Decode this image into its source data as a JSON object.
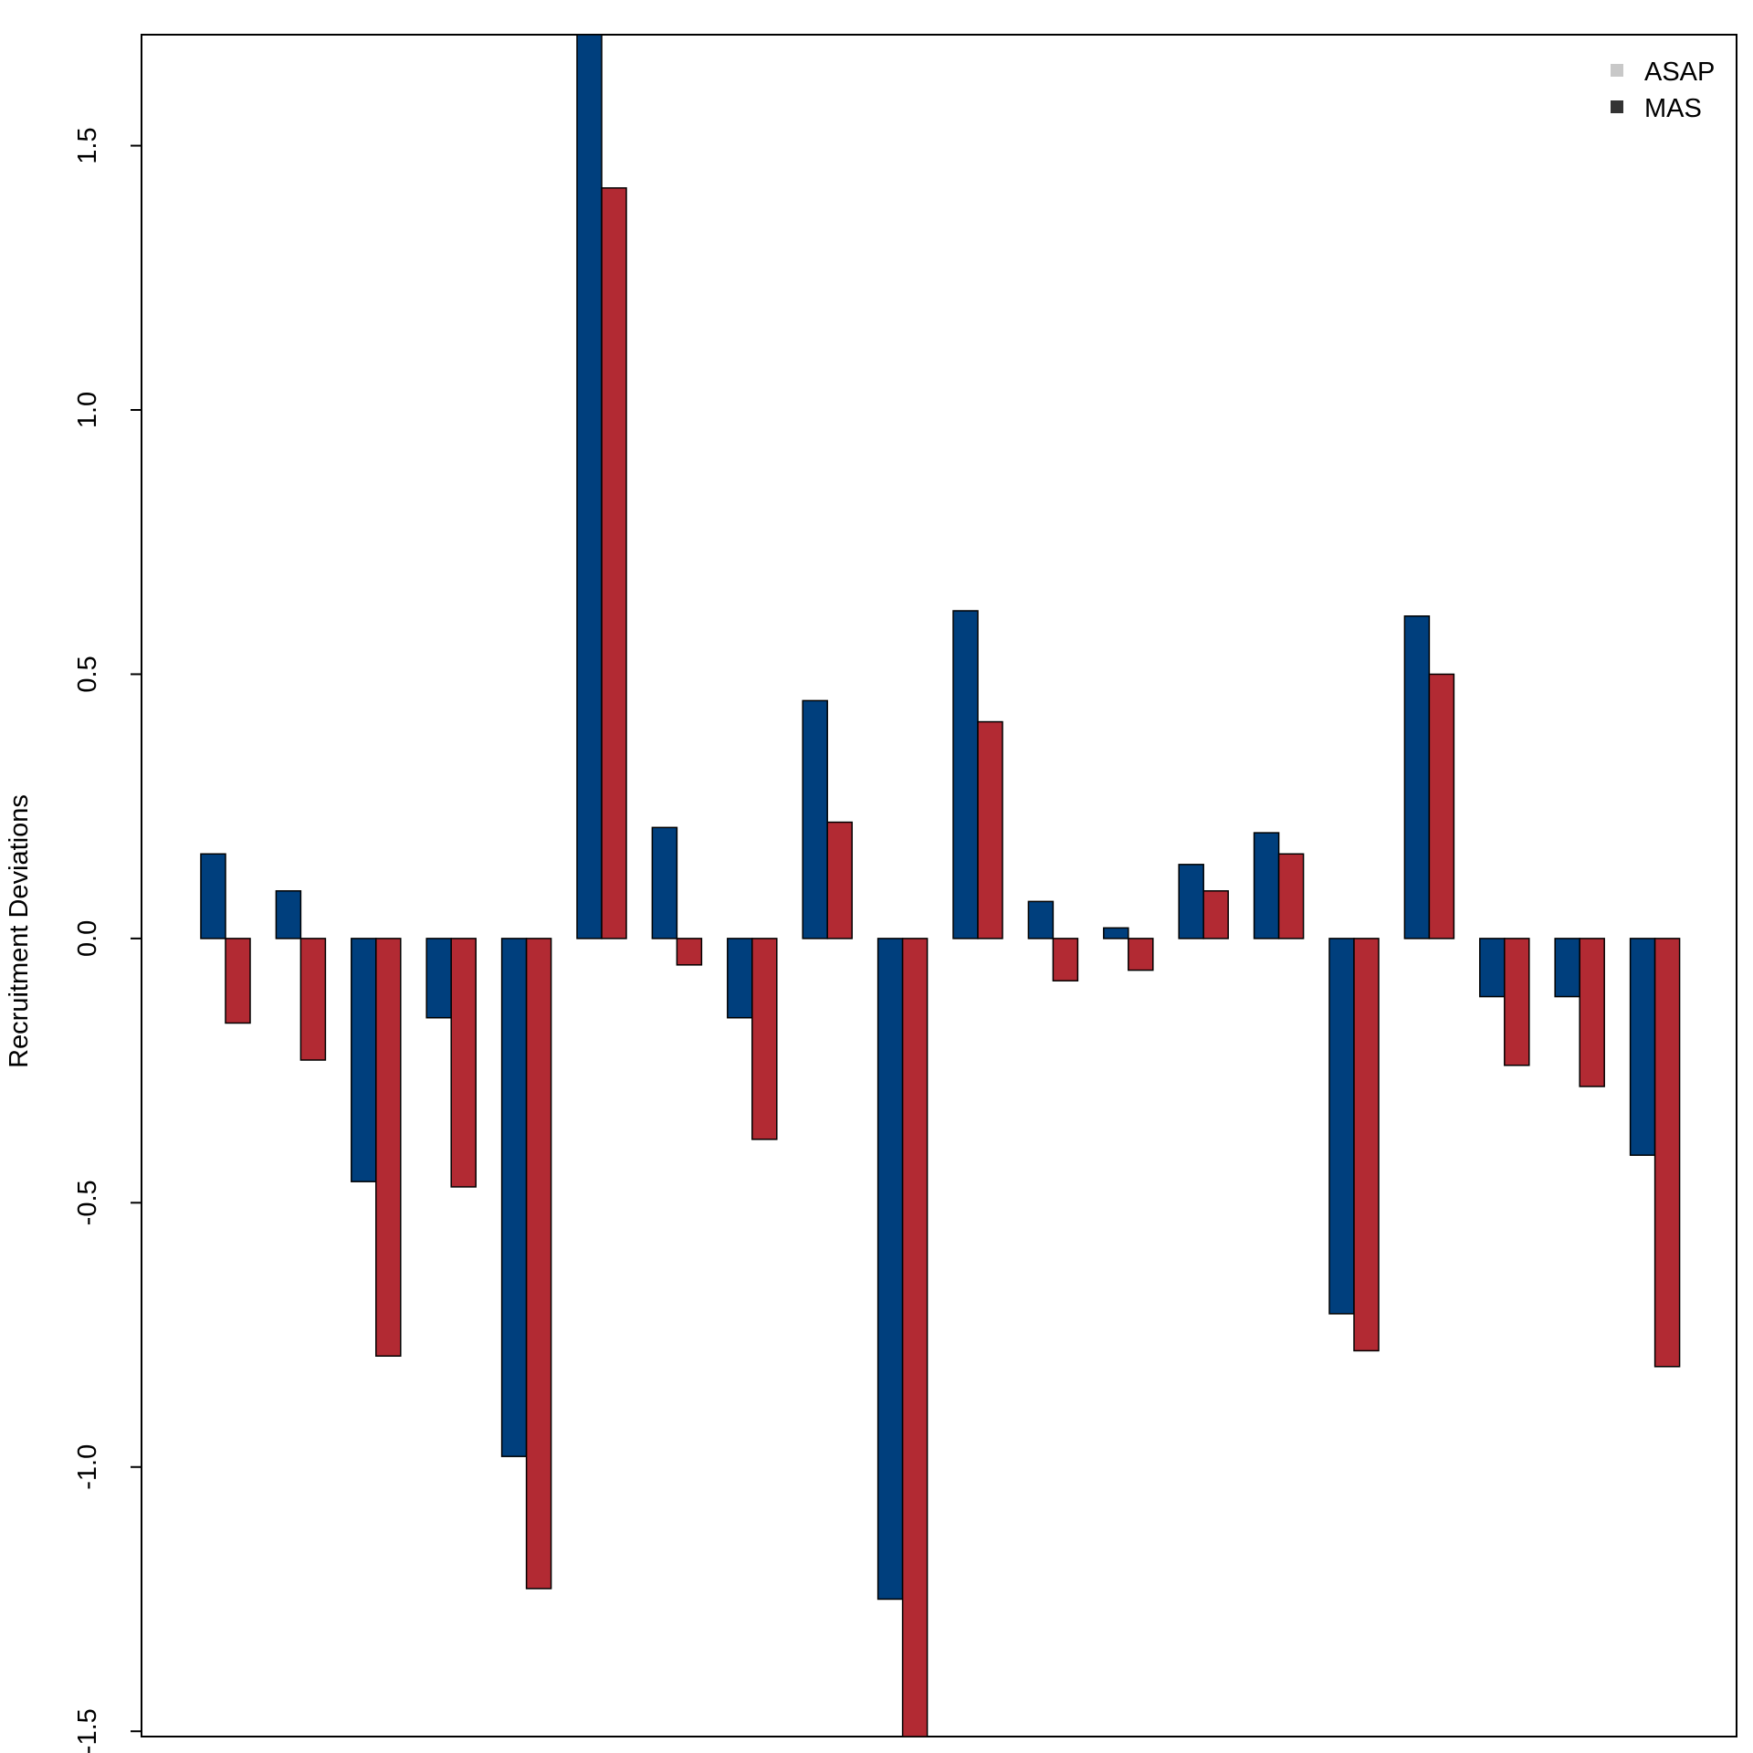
{
  "chart_data": {
    "type": "bar",
    "ylabel": "Recruitment Deviations",
    "xlabel": "",
    "ylim": [
      -1.51,
      1.71
    ],
    "yticks": [
      "-1.5",
      "-1.0",
      "-0.5",
      "0.0",
      "0.5",
      "1.0",
      "1.5"
    ],
    "ytick_values": [
      -1.5,
      -1.0,
      -0.5,
      0.0,
      0.5,
      1.0,
      1.5
    ],
    "legend": {
      "position": "top-right",
      "entries": [
        {
          "label": "ASAP",
          "swatch_color": "#c8c8c8"
        },
        {
          "label": "MAS",
          "swatch_color": "#333333"
        }
      ]
    },
    "series": [
      {
        "color": "#003f7d",
        "values": [
          0.16,
          0.09,
          -0.46,
          -0.15,
          -0.98,
          1.71,
          0.21,
          -0.15,
          0.45,
          -1.25,
          0.62,
          0.07,
          0.02,
          0.14,
          0.2,
          -0.71,
          0.61,
          -0.11,
          -0.11,
          -0.41
        ]
      },
      {
        "color": "#b22a33",
        "values": [
          -0.16,
          -0.23,
          -0.79,
          -0.47,
          -1.23,
          1.42,
          -0.05,
          -0.38,
          0.22,
          -1.51,
          0.41,
          -0.08,
          -0.06,
          0.09,
          0.16,
          -0.78,
          0.5,
          -0.24,
          -0.28,
          -0.81
        ]
      }
    ]
  }
}
